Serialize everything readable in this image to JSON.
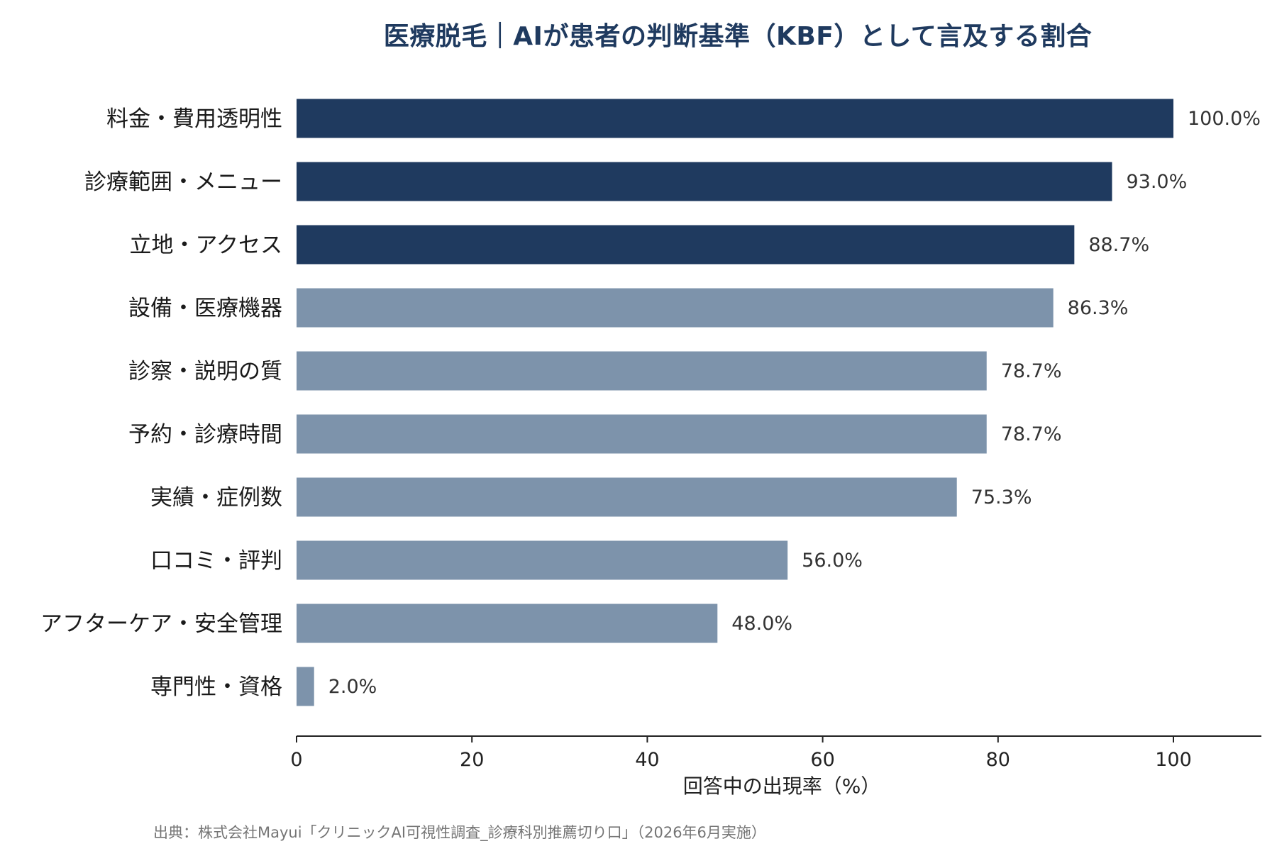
{
  "chart_data": {
    "type": "bar",
    "orientation": "horizontal",
    "title": "医療脱毛｜AIが患者の判断基準（KBF）として言及する割合",
    "xlabel": "回答中の出現率（%）",
    "ylabel": "",
    "xlim": [
      0,
      110
    ],
    "xticks": [
      "0",
      "20",
      "40",
      "60",
      "80",
      "100"
    ],
    "grid": false,
    "categories": [
      "料金・費用透明性",
      "診療範囲・メニュー",
      "立地・アクセス",
      "設備・医療機器",
      "診察・説明の質",
      "予約・診療時間",
      "実績・症例数",
      "口コミ・評判",
      "アフターケア・安全管理",
      "専門性・資格"
    ],
    "values": [
      100.0,
      93.0,
      88.7,
      86.3,
      78.7,
      78.7,
      75.3,
      56.0,
      48.0,
      2.0
    ],
    "value_labels": [
      "100.0%",
      "93.0%",
      "88.7%",
      "86.3%",
      "78.7%",
      "78.7%",
      "75.3%",
      "56.0%",
      "48.0%",
      "2.0%"
    ],
    "highlighted_top_n": 3,
    "colors": {
      "highlight": "#1f3a5f",
      "default": "#7d93ab"
    }
  },
  "source_note": "出典：株式会社Mayui「クリニックAI可視性調査_診療科別推薦切り口」（2026年6月実施）"
}
